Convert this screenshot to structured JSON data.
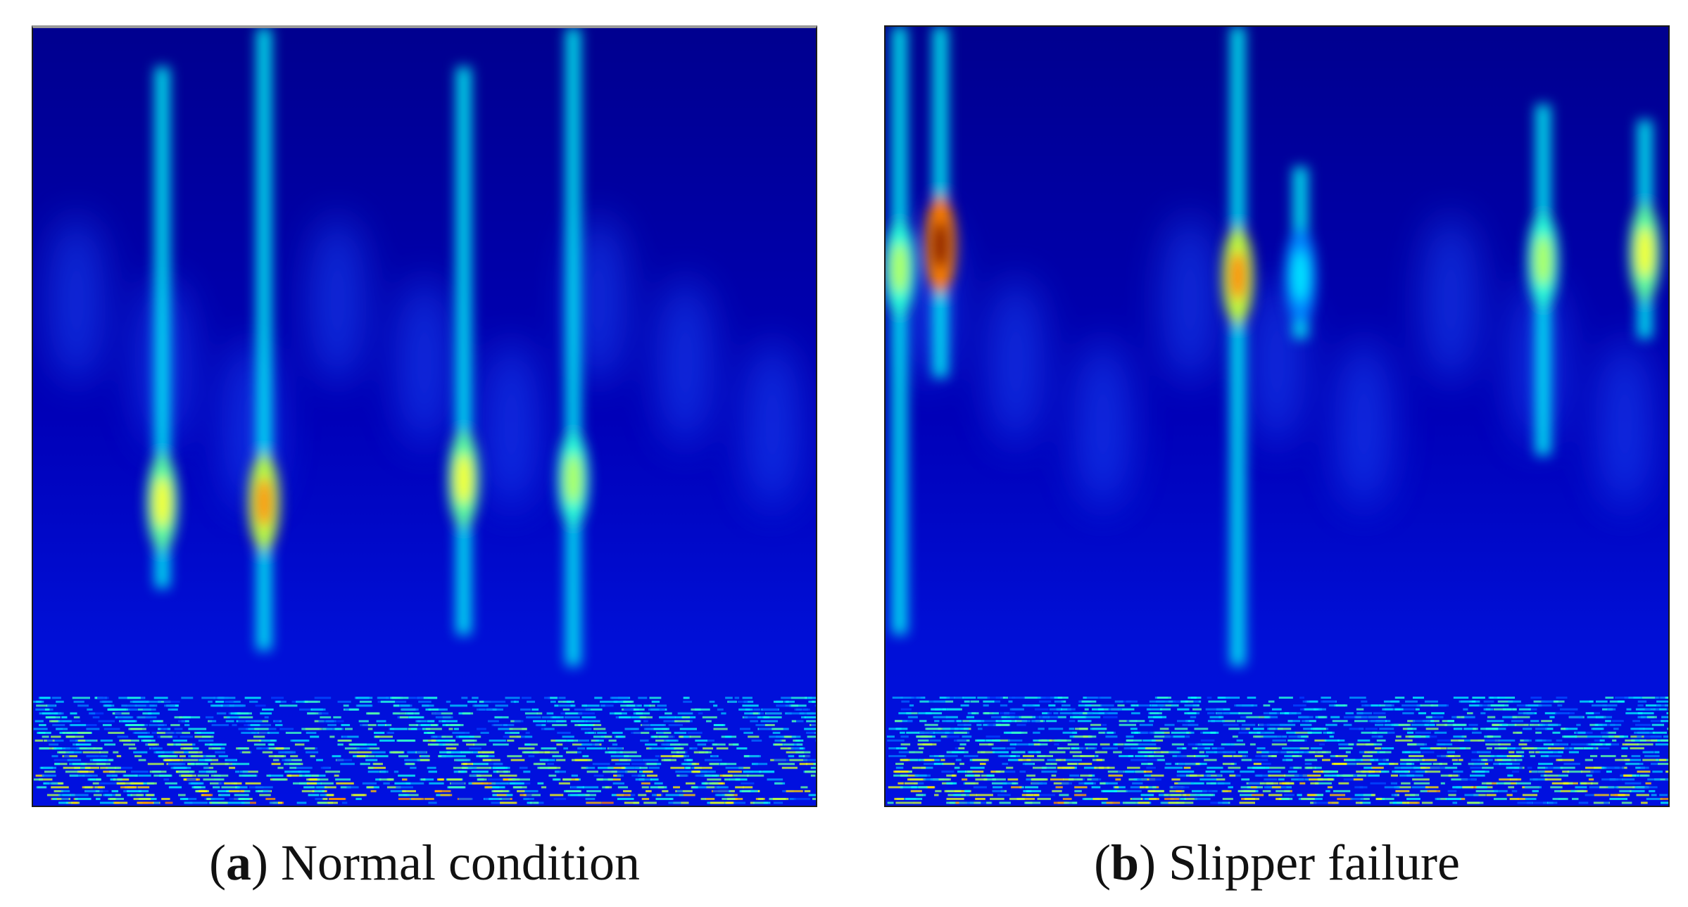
{
  "chart_data": [
    {
      "type": "heatmap",
      "panel_letter": "a",
      "caption_text": "Normal condition",
      "colormap": "jet",
      "colors": {
        "background": "#00008f",
        "low": "#0000ff",
        "mid": "#00ffff",
        "high": "#ffff00",
        "peak": "#ff0000"
      },
      "ridges": [
        {
          "x": 0.165,
          "y_from": 0.05,
          "y_to": 0.72,
          "peak_y": 0.61,
          "peak_level": 0.62
        },
        {
          "x": 0.295,
          "y_from": 0.0,
          "y_to": 0.8,
          "peak_y": 0.61,
          "peak_level": 0.74
        },
        {
          "x": 0.55,
          "y_from": 0.05,
          "y_to": 0.78,
          "peak_y": 0.58,
          "peak_level": 0.62
        },
        {
          "x": 0.69,
          "y_from": 0.0,
          "y_to": 0.82,
          "peak_y": 0.58,
          "peak_level": 0.55
        }
      ]
    },
    {
      "type": "heatmap",
      "panel_letter": "b",
      "caption_text": "Slipper failure",
      "colormap": "jet",
      "colors": {
        "background": "#00008f",
        "low": "#0000ff",
        "mid": "#00ffff",
        "high": "#ffff00",
        "peak": "#ff0000"
      },
      "ridges": [
        {
          "x": 0.018,
          "y_from": 0.0,
          "y_to": 0.78,
          "peak_y": 0.31,
          "peak_level": 0.55
        },
        {
          "x": 0.07,
          "y_from": 0.0,
          "y_to": 0.45,
          "peak_y": 0.28,
          "peak_level": 1.0
        },
        {
          "x": 0.45,
          "y_from": 0.0,
          "y_to": 0.82,
          "peak_y": 0.32,
          "peak_level": 0.75
        },
        {
          "x": 0.53,
          "y_from": 0.18,
          "y_to": 0.4,
          "peak_y": 0.32,
          "peak_level": 0.35
        },
        {
          "x": 0.84,
          "y_from": 0.1,
          "y_to": 0.55,
          "peak_y": 0.3,
          "peak_level": 0.55
        },
        {
          "x": 0.97,
          "y_from": 0.12,
          "y_to": 0.4,
          "peak_y": 0.29,
          "peak_level": 0.62
        }
      ]
    }
  ]
}
